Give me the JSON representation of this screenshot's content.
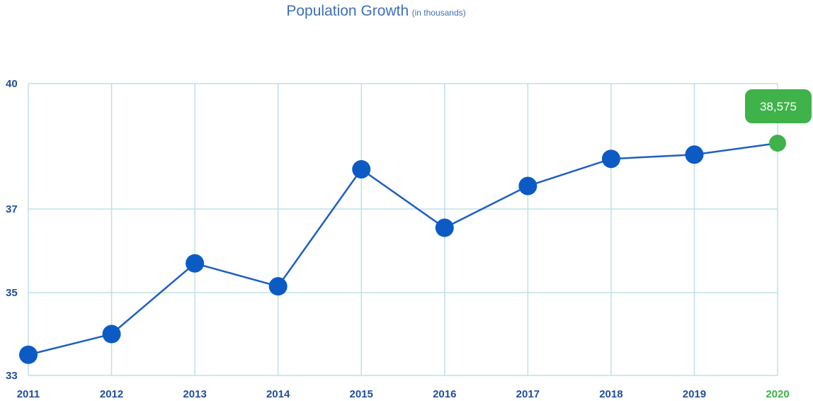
{
  "title": {
    "main": "Population Growth",
    "sub": "(in thousands)"
  },
  "colors": {
    "line": "#1f5fbf",
    "point": "#0c5bc4",
    "highlight": "#3fb24a",
    "grid": "#bfe0e6",
    "axis_text": "#1f4e9c",
    "title": "#3e6fb8"
  },
  "chart_data": {
    "type": "line",
    "title": "Population Growth (in thousands)",
    "xlabel": "",
    "ylabel": "",
    "categories": [
      "2011",
      "2012",
      "2013",
      "2014",
      "2015",
      "2016",
      "2017",
      "2018",
      "2019",
      "2020"
    ],
    "series": [
      {
        "values": [
          33.5,
          34.0,
          35.7,
          35.15,
          37.95,
          36.55,
          37.55,
          38.2,
          38.3,
          38.575
        ]
      }
    ],
    "y_ticks": [
      "33",
      "35",
      "37",
      "40"
    ],
    "ylim": [
      33,
      40
    ],
    "grid": true,
    "highlight": {
      "category": "2020",
      "label": "38,575"
    }
  }
}
